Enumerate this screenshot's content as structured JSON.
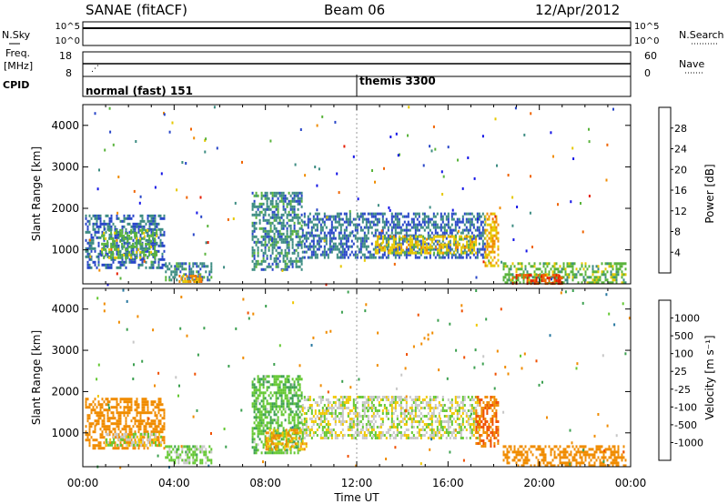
{
  "header": {
    "left": "SANAE (fitACF)",
    "center": "Beam 06",
    "right": "12/Apr/2012"
  },
  "strip_nsky": {
    "label": "N.Sky",
    "right_label": "N.Search",
    "left_ticks": [
      "10^5",
      "10^0"
    ],
    "right_ticks": [
      "10^5",
      "10^0"
    ]
  },
  "strip_freq": {
    "label": "Freq.",
    "unit": "[MHz]",
    "right_label": "Nave",
    "left_ticks": [
      "18",
      "8"
    ],
    "right_ticks": [
      "60",
      "0"
    ]
  },
  "cpid": {
    "label": "CPID",
    "segments": [
      {
        "name": "normal (fast) 151",
        "start_hour": 0
      },
      {
        "name": "themis 3300",
        "start_hour": 12
      }
    ]
  },
  "chart_data": [
    {
      "type": "heatmap",
      "title": "Power",
      "ylabel": "Slant Range [km]",
      "xlabel": "",
      "xlim": [
        0,
        24
      ],
      "ylim": [
        180,
        4500
      ],
      "yticks": [
        1000,
        2000,
        3000,
        4000
      ],
      "colorbar": {
        "label": "Power [dB]",
        "ticks": [
          4,
          8,
          12,
          16,
          20,
          24,
          28
        ],
        "range": [
          0,
          32
        ],
        "colors": [
          "#1414e6",
          "#2846c8",
          "#3c8c82",
          "#5ab43c",
          "#e6c800",
          "#f08c00",
          "#f06400",
          "#e61e00"
        ]
      },
      "regions": [
        {
          "t0": 0.1,
          "t1": 3.6,
          "r0": 600,
          "r1": 1850,
          "level": 8
        },
        {
          "t0": 0.8,
          "t1": 3.2,
          "r0": 800,
          "r1": 1500,
          "level": 14
        },
        {
          "t0": 3.6,
          "t1": 5.6,
          "r0": 300,
          "r1": 700,
          "level": 10
        },
        {
          "t0": 4.2,
          "t1": 5.2,
          "r0": 260,
          "r1": 400,
          "level": 22
        },
        {
          "t0": 7.4,
          "t1": 9.6,
          "r0": 500,
          "r1": 2400,
          "level": 10
        },
        {
          "t0": 9.6,
          "t1": 17.6,
          "r0": 800,
          "r1": 1900,
          "level": 8
        },
        {
          "t0": 12.8,
          "t1": 17.2,
          "r0": 950,
          "r1": 1350,
          "level": 18
        },
        {
          "t0": 17.6,
          "t1": 18.2,
          "r0": 600,
          "r1": 1900,
          "level": 20
        },
        {
          "t0": 18.4,
          "t1": 23.8,
          "r0": 220,
          "r1": 700,
          "level": 14
        },
        {
          "t0": 18.8,
          "t1": 21.0,
          "r0": 200,
          "r1": 420,
          "level": 28
        }
      ]
    },
    {
      "type": "heatmap",
      "title": "Velocity",
      "ylabel": "Slant Range [km]",
      "xlabel": "Time UT",
      "xlim": [
        0,
        24
      ],
      "ylim": [
        180,
        4500
      ],
      "yticks": [
        1000,
        2000,
        3000,
        4000
      ],
      "xticks": [
        "00:00",
        "04:00",
        "08:00",
        "12:00",
        "16:00",
        "20:00",
        "00:00"
      ],
      "colorbar": {
        "label": "Velocity [m s⁻¹]",
        "ticks": [
          "1000",
          "500",
          "100",
          "25",
          "-25",
          "-100",
          "-500",
          "-1000"
        ],
        "colors": [
          "#1e3cc8",
          "#2878a0",
          "#3ca050",
          "#64c832",
          "#c8c8c8",
          "#f0c800",
          "#f08c00",
          "#f05000",
          "#e61400"
        ]
      },
      "regions": [
        {
          "t0": 0.1,
          "t1": 3.6,
          "r0": 600,
          "r1": 1850,
          "level": -300
        },
        {
          "t0": 1.0,
          "t1": 3.4,
          "r0": 700,
          "r1": 1000,
          "level": 0
        },
        {
          "t0": 3.6,
          "t1": 5.6,
          "r0": 300,
          "r1": 700,
          "level": 50
        },
        {
          "t0": 7.4,
          "t1": 9.6,
          "r0": 500,
          "r1": 2400,
          "level": 80
        },
        {
          "t0": 8.0,
          "t1": 9.8,
          "r0": 600,
          "r1": 1100,
          "level": -100
        },
        {
          "t0": 9.6,
          "t1": 17.4,
          "r0": 900,
          "r1": 1900,
          "level": 0
        },
        {
          "t0": 17.2,
          "t1": 18.2,
          "r0": 700,
          "r1": 1900,
          "level": -500
        },
        {
          "t0": 18.4,
          "t1": 23.8,
          "r0": 220,
          "r1": 700,
          "level": -200
        }
      ]
    }
  ]
}
